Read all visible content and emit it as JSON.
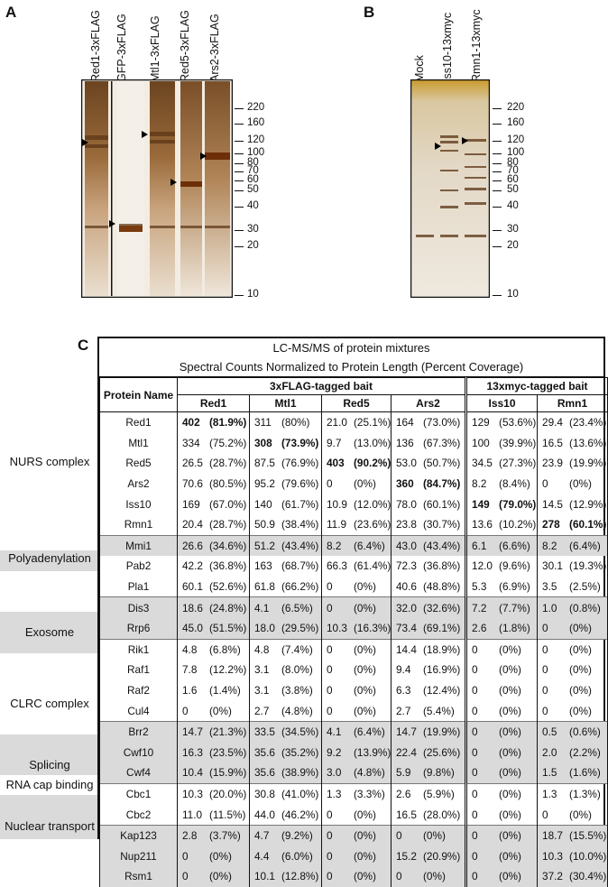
{
  "panelA": {
    "label": "A",
    "lanes": [
      "Red1-3xFLAG",
      "GFP-3xFLAG",
      "Mtl1-3xFLAG",
      "Red5-3xFLAG",
      "Ars2-3xFLAG"
    ],
    "markers": [
      "220",
      "160",
      "120",
      "100",
      "80",
      "70",
      "60",
      "50",
      "40",
      "30",
      "20",
      "10"
    ]
  },
  "panelB": {
    "label": "B",
    "lanes": [
      "Mock",
      "Iss10-13xmyc",
      "Rmn1-13xmyc"
    ],
    "markers": [
      "220",
      "160",
      "120",
      "100",
      "80",
      "70",
      "60",
      "50",
      "40",
      "30",
      "20",
      "10"
    ]
  },
  "panelC": {
    "label": "C",
    "title1": "LC-MS/MS of protein mixtures",
    "title2": "Spectral Counts Normalized to Protein Length (Percent Coverage)",
    "protein_name_header": "Protein Name",
    "group1": "3xFLAG-tagged bait",
    "group2": "13xmyc-tagged bait",
    "baits": [
      "Red1",
      "Mtl1",
      "Red5",
      "Ars2",
      "Iss10",
      "Rmn1"
    ],
    "categories": [
      "NURS complex",
      "Polyadenylation",
      "Exosome",
      "CLRC complex",
      "Splicing",
      "RNA cap binding",
      "Nuclear transport"
    ],
    "rows": [
      {
        "name": "Red1",
        "cells": [
          [
            "402",
            "(81.9%)"
          ],
          [
            "311",
            "(80%)"
          ],
          [
            "21.0",
            "(25.1%)"
          ],
          [
            "164",
            "(73.0%)"
          ],
          [
            "129",
            "(53.6%)"
          ],
          [
            "29.4",
            "(23.4%)"
          ]
        ]
      },
      {
        "name": "Mtl1",
        "cells": [
          [
            "334",
            "(75.2%)"
          ],
          [
            "308",
            "(73.9%)"
          ],
          [
            "9.7",
            "(13.0%)"
          ],
          [
            "136",
            "(67.3%)"
          ],
          [
            "100",
            "(39.9%)"
          ],
          [
            "16.5",
            "(13.6%)"
          ]
        ]
      },
      {
        "name": "Red5",
        "cells": [
          [
            "26.5",
            "(28.7%)"
          ],
          [
            "87.5",
            "(76.9%)"
          ],
          [
            "403",
            "(90.2%)"
          ],
          [
            "53.0",
            "(50.7%)"
          ],
          [
            "34.5",
            "(27.3%)"
          ],
          [
            "23.9",
            "(19.9%)"
          ]
        ]
      },
      {
        "name": "Ars2",
        "cells": [
          [
            "70.6",
            "(80.5%)"
          ],
          [
            "95.2",
            "(79.6%)"
          ],
          [
            "0",
            "(0%)"
          ],
          [
            "360",
            "(84.7%)"
          ],
          [
            "8.2",
            "(8.4%)"
          ],
          [
            "0",
            "(0%)"
          ]
        ]
      },
      {
        "name": "Iss10",
        "cells": [
          [
            "169",
            "(67.0%)"
          ],
          [
            "140",
            "(61.7%)"
          ],
          [
            "10.9",
            "(12.0%)"
          ],
          [
            "78.0",
            "(60.1%)"
          ],
          [
            "149",
            "(79.0%)"
          ],
          [
            "14.5",
            "(12.9%)"
          ]
        ]
      },
      {
        "name": "Rmn1",
        "cells": [
          [
            "20.4",
            "(28.7%)"
          ],
          [
            "50.9",
            "(38.4%)"
          ],
          [
            "11.9",
            "(23.6%)"
          ],
          [
            "23.8",
            "(30.7%)"
          ],
          [
            "13.6",
            "(10.2%)"
          ],
          [
            "278",
            "(60.1%)"
          ]
        ]
      },
      {
        "name": "Mmi1",
        "cells": [
          [
            "26.6",
            "(34.6%)"
          ],
          [
            "51.2",
            "(43.4%)"
          ],
          [
            "8.2",
            "(6.4%)"
          ],
          [
            "43.0",
            "(43.4%)"
          ],
          [
            "6.1",
            "(6.6%)"
          ],
          [
            "8.2",
            "(6.4%)"
          ]
        ]
      },
      {
        "name": "Pab2",
        "cells": [
          [
            "42.2",
            "(36.8%)"
          ],
          [
            "163",
            "(68.7%)"
          ],
          [
            "66.3",
            "(61.4%)"
          ],
          [
            "72.3",
            "(36.8%)"
          ],
          [
            "12.0",
            "(9.6%)"
          ],
          [
            "30.1",
            "(19.3%)"
          ]
        ]
      },
      {
        "name": "Pla1",
        "cells": [
          [
            "60.1",
            "(52.6%)"
          ],
          [
            "61.8",
            "(66.2%)"
          ],
          [
            "0",
            "(0%)"
          ],
          [
            "40.6",
            "(48.8%)"
          ],
          [
            "5.3",
            "(6.9%)"
          ],
          [
            "3.5",
            "(2.5%)"
          ]
        ]
      },
      {
        "name": "Dis3",
        "cells": [
          [
            "18.6",
            "(24.8%)"
          ],
          [
            "4.1",
            "(6.5%)"
          ],
          [
            "0",
            "(0%)"
          ],
          [
            "32.0",
            "(32.6%)"
          ],
          [
            "7.2",
            "(7.7%)"
          ],
          [
            "1.0",
            "(0.8%)"
          ]
        ]
      },
      {
        "name": "Rrp6",
        "cells": [
          [
            "45.0",
            "(51.5%)"
          ],
          [
            "18.0",
            "(29.5%)"
          ],
          [
            "10.3",
            "(16.3%)"
          ],
          [
            "73.4",
            "(69.1%)"
          ],
          [
            "2.6",
            "(1.8%)"
          ],
          [
            "0",
            "(0%)"
          ]
        ]
      },
      {
        "name": "Rik1",
        "cells": [
          [
            "4.8",
            "(6.8%)"
          ],
          [
            "4.8",
            "(7.4%)"
          ],
          [
            "0",
            "(0%)"
          ],
          [
            "14.4",
            "(18.9%)"
          ],
          [
            "0",
            "(0%)"
          ],
          [
            "0",
            "(0%)"
          ]
        ]
      },
      {
        "name": "Raf1",
        "cells": [
          [
            "7.8",
            "(12.2%)"
          ],
          [
            "3.1",
            "(8.0%)"
          ],
          [
            "0",
            "(0%)"
          ],
          [
            "9.4",
            "(16.9%)"
          ],
          [
            "0",
            "(0%)"
          ],
          [
            "0",
            "(0%)"
          ]
        ]
      },
      {
        "name": "Raf2",
        "cells": [
          [
            "1.6",
            "(1.4%)"
          ],
          [
            "3.1",
            "(3.8%)"
          ],
          [
            "0",
            "(0%)"
          ],
          [
            "6.3",
            "(12.4%)"
          ],
          [
            "0",
            "(0%)"
          ],
          [
            "0",
            "(0%)"
          ]
        ]
      },
      {
        "name": "Cul4",
        "cells": [
          [
            "0",
            "(0%)"
          ],
          [
            "2.7",
            "(4.8%)"
          ],
          [
            "0",
            "(0%)"
          ],
          [
            "2.7",
            "(5.4%)"
          ],
          [
            "0",
            "(0%)"
          ],
          [
            "0",
            "(0%)"
          ]
        ]
      },
      {
        "name": "Brr2",
        "cells": [
          [
            "14.7",
            "(21.3%)"
          ],
          [
            "33.5",
            "(34.5%)"
          ],
          [
            "4.1",
            "(6.4%)"
          ],
          [
            "14.7",
            "(19.9%)"
          ],
          [
            "0",
            "(0%)"
          ],
          [
            "0.5",
            "(0.6%)"
          ]
        ]
      },
      {
        "name": "Cwf10",
        "cells": [
          [
            "16.3",
            "(23.5%)"
          ],
          [
            "35.6",
            "(35.2%)"
          ],
          [
            "9.2",
            "(13.9%)"
          ],
          [
            "22.4",
            "(25.6%)"
          ],
          [
            "0",
            "(0%)"
          ],
          [
            "2.0",
            "(2.2%)"
          ]
        ]
      },
      {
        "name": "Cwf4",
        "cells": [
          [
            "10.4",
            "(15.9%)"
          ],
          [
            "35.6",
            "(38.9%)"
          ],
          [
            "3.0",
            "(4.8%)"
          ],
          [
            "5.9",
            "(9.8%)"
          ],
          [
            "0",
            "(0%)"
          ],
          [
            "1.5",
            "(1.6%)"
          ]
        ]
      },
      {
        "name": "Cbc1",
        "cells": [
          [
            "10.3",
            "(20.0%)"
          ],
          [
            "30.8",
            "(41.0%)"
          ],
          [
            "1.3",
            "(3.3%)"
          ],
          [
            "2.6",
            "(5.9%)"
          ],
          [
            "0",
            "(0%)"
          ],
          [
            "1.3",
            "(1.3%)"
          ]
        ]
      },
      {
        "name": "Cbc2",
        "cells": [
          [
            "11.0",
            "(11.5%)"
          ],
          [
            "44.0",
            "(46.2%)"
          ],
          [
            "0",
            "(0%)"
          ],
          [
            "16.5",
            "(28.0%)"
          ],
          [
            "0",
            "(0%)"
          ],
          [
            "0",
            "(0%)"
          ]
        ]
      },
      {
        "name": "Kap123",
        "cells": [
          [
            "2.8",
            "(3.7%)"
          ],
          [
            "4.7",
            "(9.2%)"
          ],
          [
            "0",
            "(0%)"
          ],
          [
            "0",
            "(0%)"
          ],
          [
            "0",
            "(0%)"
          ],
          [
            "18.7",
            "(15.5%)"
          ]
        ]
      },
      {
        "name": "Nup211",
        "cells": [
          [
            "0",
            "(0%)"
          ],
          [
            "4.4",
            "(6.0%)"
          ],
          [
            "0",
            "(0%)"
          ],
          [
            "15.2",
            "(20.9%)"
          ],
          [
            "0",
            "(0%)"
          ],
          [
            "10.3",
            "(10.0%)"
          ]
        ]
      },
      {
        "name": "Rsm1",
        "cells": [
          [
            "0",
            "(0%)"
          ],
          [
            "10.1",
            "(12.8%)"
          ],
          [
            "0",
            "(0%)"
          ],
          [
            "0",
            "(0%)"
          ],
          [
            "0",
            "(0%)"
          ],
          [
            "37.2",
            "(30.4%)"
          ]
        ]
      }
    ]
  }
}
